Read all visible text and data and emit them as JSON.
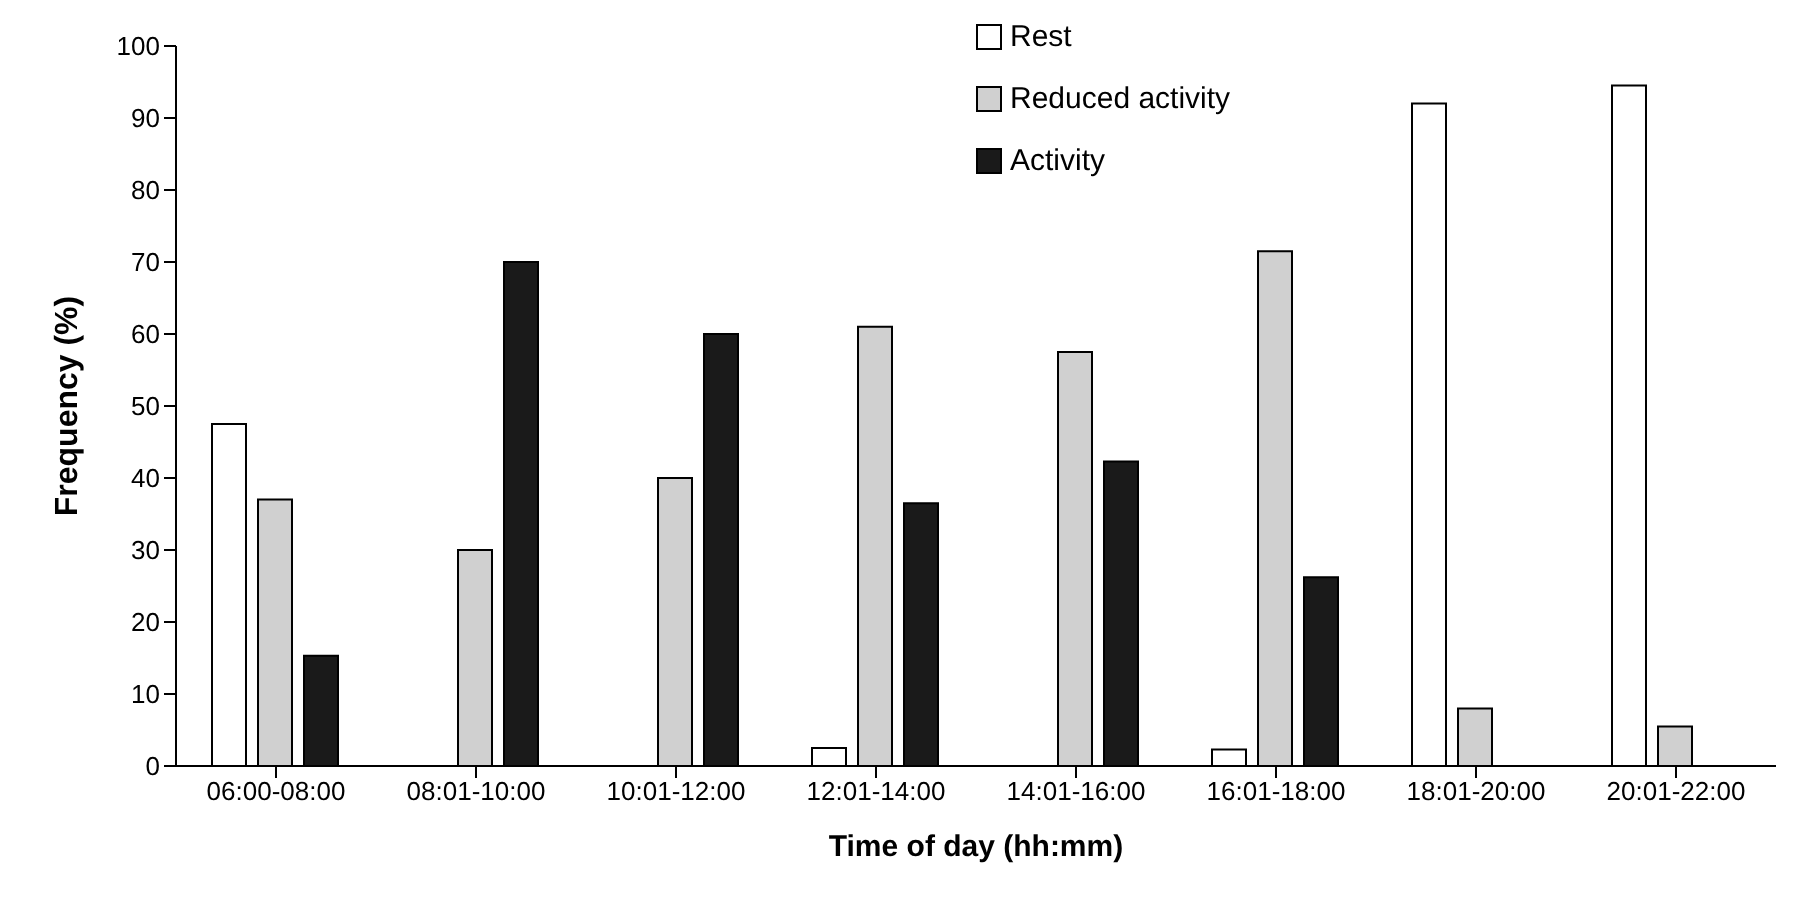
{
  "chart_data": {
    "type": "bar",
    "xlabel": "Time of day (hh:mm)",
    "ylabel": "Frequency (%)",
    "categories": [
      "06:00-08:00",
      "08:01-10:00",
      "10:01-12:00",
      "12:01-14:00",
      "14:01-16:00",
      "16:01-18:00",
      "18:01-20:00",
      "20:01-22:00"
    ],
    "series": [
      {
        "name": "Rest",
        "color": "#ffffff",
        "values": [
          47.5,
          0,
          0,
          2.5,
          0,
          2.3,
          92,
          94.5
        ]
      },
      {
        "name": "Reduced activity",
        "color": "#d0d0d0",
        "values": [
          37,
          30,
          40,
          61,
          57.5,
          71.5,
          8,
          5.5
        ]
      },
      {
        "name": "Activity",
        "color": "#1a1a1a",
        "values": [
          15.3,
          70,
          60,
          36.5,
          42.3,
          26.2,
          0,
          0
        ]
      }
    ],
    "ylim": [
      0,
      100
    ],
    "yticks": [
      0,
      10,
      20,
      30,
      40,
      50,
      60,
      70,
      80,
      90,
      100
    ],
    "grid": false,
    "legend": "top"
  }
}
